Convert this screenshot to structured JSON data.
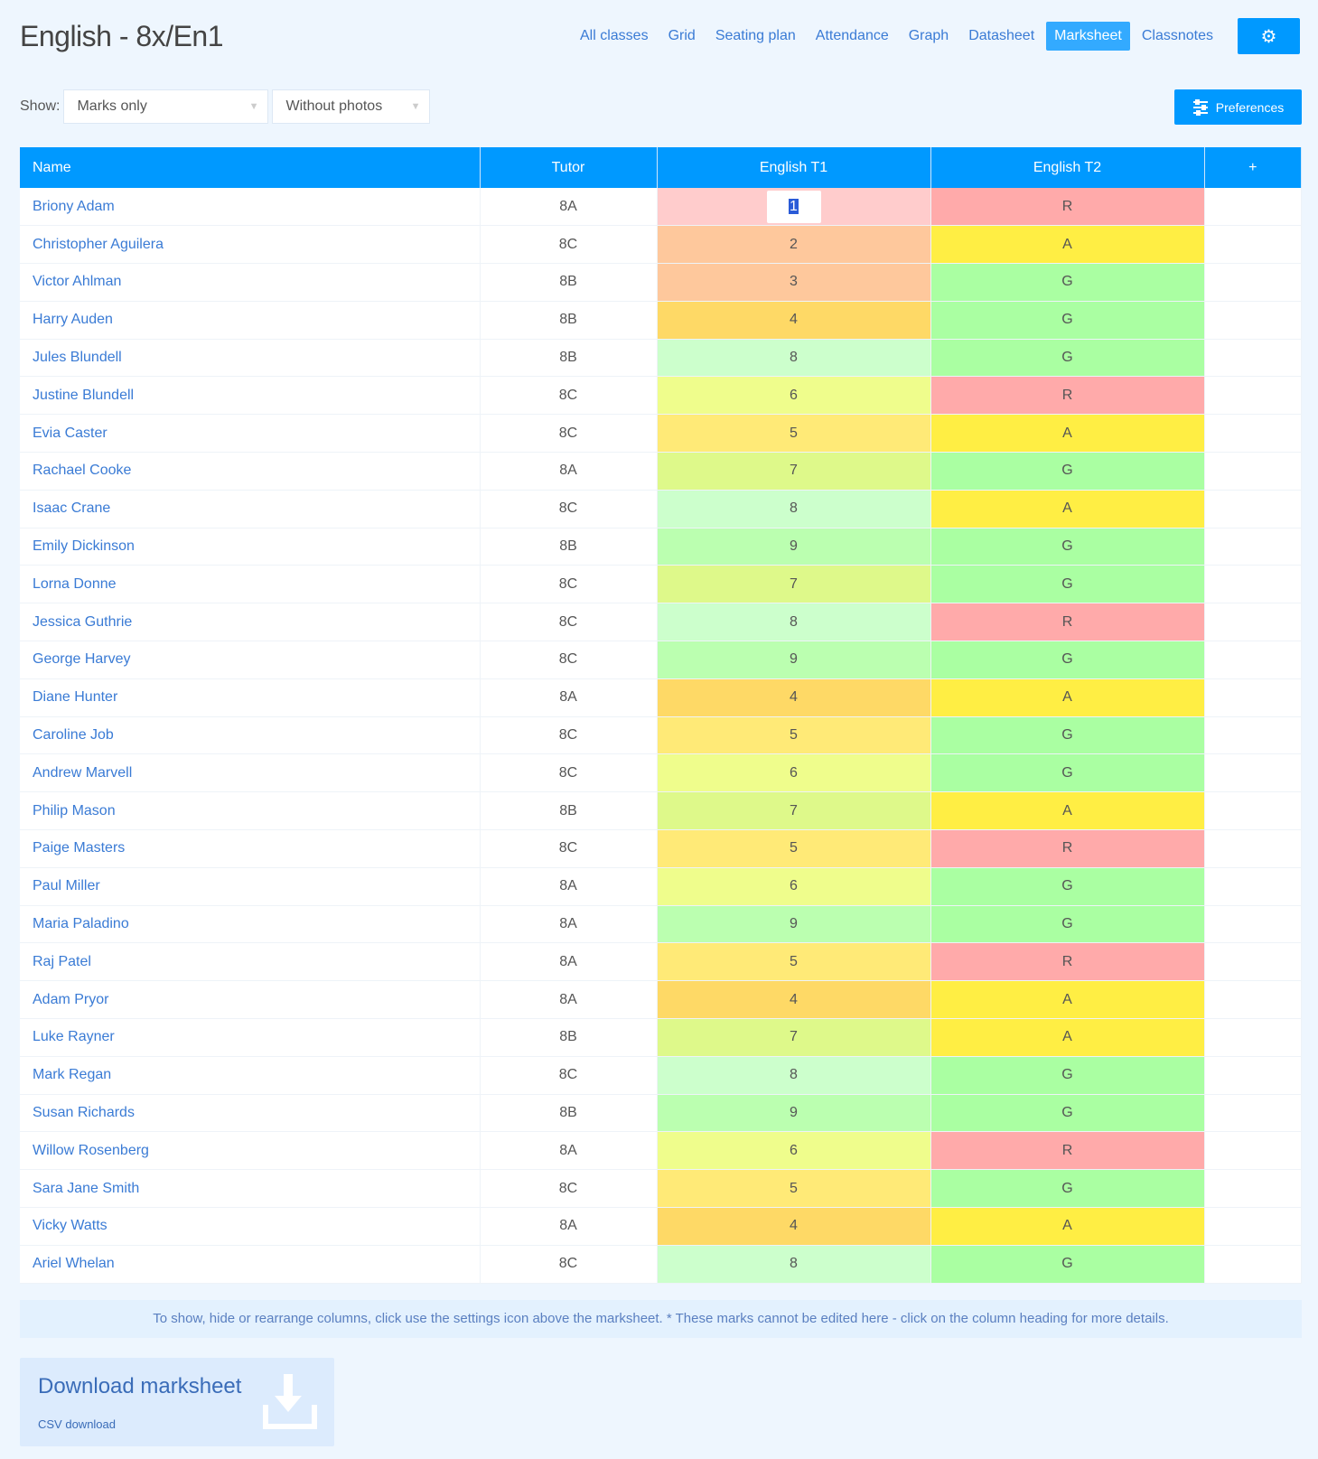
{
  "header": {
    "title": "English - 8x/En1",
    "nav": [
      "All classes",
      "Grid",
      "Seating plan",
      "Attendance",
      "Graph",
      "Datasheet",
      "Marksheet",
      "Classnotes"
    ],
    "active": "Marksheet"
  },
  "filters": {
    "show_label": "Show:",
    "view": "Marks only",
    "photos": "Without photos"
  },
  "preferences_label": "Preferences",
  "table": {
    "columns": [
      "Name",
      "Tutor",
      "English T1",
      "English T2",
      "+"
    ],
    "rows": [
      [
        "Briony Adam",
        "8A",
        "1",
        "R"
      ],
      [
        "Christopher Aguilera",
        "8C",
        "2",
        "A"
      ],
      [
        "Victor Ahlman",
        "8B",
        "3",
        "G"
      ],
      [
        "Harry Auden",
        "8B",
        "4",
        "G"
      ],
      [
        "Jules Blundell",
        "8B",
        "8",
        "G"
      ],
      [
        "Justine Blundell",
        "8C",
        "6",
        "R"
      ],
      [
        "Evia Caster",
        "8C",
        "5",
        "A"
      ],
      [
        "Rachael Cooke",
        "8A",
        "7",
        "G"
      ],
      [
        "Isaac Crane",
        "8C",
        "8",
        "A"
      ],
      [
        "Emily Dickinson",
        "8B",
        "9",
        "G"
      ],
      [
        "Lorna Donne",
        "8C",
        "7",
        "G"
      ],
      [
        "Jessica Guthrie",
        "8C",
        "8",
        "R"
      ],
      [
        "George Harvey",
        "8C",
        "9",
        "G"
      ],
      [
        "Diane Hunter",
        "8A",
        "4",
        "A"
      ],
      [
        "Caroline Job",
        "8C",
        "5",
        "G"
      ],
      [
        "Andrew Marvell",
        "8C",
        "6",
        "G"
      ],
      [
        "Philip Mason",
        "8B",
        "7",
        "A"
      ],
      [
        "Paige Masters",
        "8C",
        "5",
        "R"
      ],
      [
        "Paul Miller",
        "8A",
        "6",
        "G"
      ],
      [
        "Maria Paladino",
        "8A",
        "9",
        "G"
      ],
      [
        "Raj Patel",
        "8A",
        "5",
        "R"
      ],
      [
        "Adam Pryor",
        "8A",
        "4",
        "A"
      ],
      [
        "Luke Rayner",
        "8B",
        "7",
        "A"
      ],
      [
        "Mark Regan",
        "8C",
        "8",
        "G"
      ],
      [
        "Susan Richards",
        "8B",
        "9",
        "G"
      ],
      [
        "Willow Rosenberg",
        "8A",
        "6",
        "R"
      ],
      [
        "Sara Jane Smith",
        "8C",
        "5",
        "G"
      ],
      [
        "Vicky Watts",
        "8A",
        "4",
        "A"
      ],
      [
        "Ariel Whelan",
        "8C",
        "8",
        "G"
      ]
    ]
  },
  "colors": {
    "t1": {
      "1": "#ffcccc",
      "2": "#fec89c",
      "3": "#fec89c",
      "4": "#fed966",
      "5": "#ffea77",
      "6": "#effd8c",
      "7": "#def98a",
      "8": "#ccffcc",
      "9": "#bbffb0"
    },
    "t2": {
      "R": "#ffaaaa",
      "A": "#ffee44",
      "G": "#aaffa2"
    },
    "accent": "#0099ff"
  },
  "note": "To show, hide or rearrange columns, click use the settings icon above the marksheet. * These marks cannot be edited here - click on the column heading for more details.",
  "download": {
    "title": "Download marksheet",
    "subtitle": "CSV download"
  }
}
